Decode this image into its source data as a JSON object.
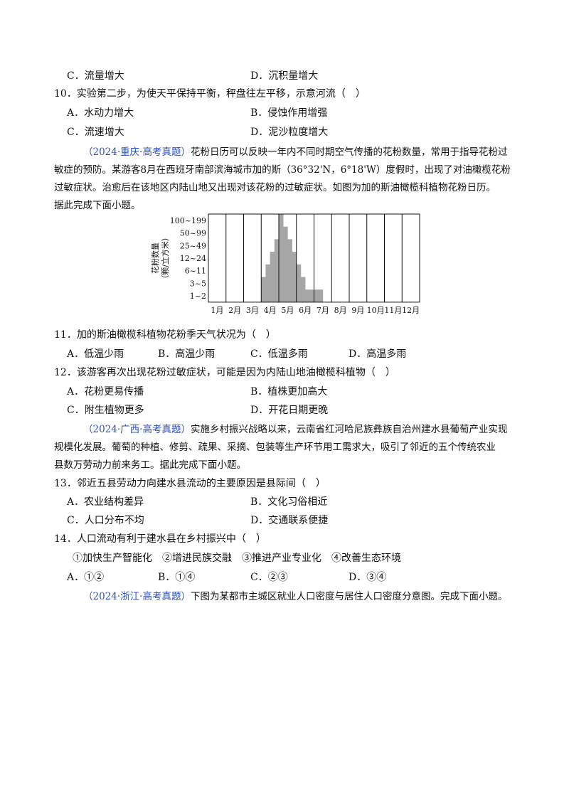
{
  "q9_options": {
    "c": "C．流量增大",
    "d": "D．沉积量增大"
  },
  "q10": {
    "stem": "10．实验第二步，为使天平保持平衡，秤盘往左平移，示意河流（　）",
    "a": "A．水动力增大",
    "b": "B．侵蚀作用增强",
    "c": "C．流速增大",
    "d": "D．泥沙粒度增大"
  },
  "passage1": {
    "source": "（2024·重庆·高考真题）",
    "line1": "花粉日历可以反映一年内不同时期空气传播的花粉数量，常用于指导花粉过",
    "line2": "敏症的预防。某游客8月在西班牙南部滨海城市加的斯（36°32'N，6°18'W）度假时，出现了对油橄榄花粉",
    "line3": "过敏症状。治愈后在该地区内陆山地又出现对该花粉的过敏症状。如图为加的斯油橄榄科植物花粉日历。",
    "line4": "据此完成下面小题。"
  },
  "chart_data": {
    "type": "bar",
    "ylabel": "花粉数量（颗/立方米）",
    "y_categories": [
      "1~2",
      "3~5",
      "6~11",
      "12~24",
      "25~49",
      "50~99",
      "100~199"
    ],
    "categories": [
      "1月",
      "2月",
      "3月",
      "4月",
      "5月",
      "6月",
      "7月",
      "8月",
      "9月",
      "10月",
      "11月",
      "12月"
    ],
    "bins_per_month": 4,
    "levels": [
      0,
      0,
      0,
      0,
      0,
      0,
      0,
      0,
      0,
      0,
      0,
      0,
      2,
      3,
      4,
      5,
      7,
      6,
      5,
      4,
      3,
      2,
      1,
      1,
      1,
      1,
      0,
      0,
      0,
      0,
      0,
      0,
      0,
      0,
      0,
      0,
      0,
      0,
      0,
      0,
      0,
      0,
      0,
      0,
      0,
      0,
      0,
      0
    ],
    "grid": true
  },
  "q11": {
    "stem": "11．加的斯油橄榄科植物花粉季天气状况为（　）",
    "a": "A．低温少雨",
    "b": "B．高温少雨",
    "c": "C．低温多雨",
    "d": "D．高温多雨"
  },
  "q12": {
    "stem": "12．该游客再次出现花粉过敏症状，可能是因为内陆山地油橄榄科植物（　）",
    "a": "A．花粉更易传播",
    "b": "B．植株更加高大",
    "c": "C．附生植物更多",
    "d": "D．开花日期更晚"
  },
  "passage2": {
    "source": "（2024·广西·高考真题）",
    "line1": "实施乡村振兴战略以来，云南省红河哈尼族彝族自治州建水县葡萄产业实现",
    "line2": "规模化发展。葡萄的种植、修剪、疏果、采摘、包装等生产环节用工需求大，吸引了邻近的五个传统农业",
    "line3": "县数万劳动力前来务工。据此完成下面小题。"
  },
  "q13": {
    "stem": "13．邻近五县劳动力向建水县流动的主要原因是县际间（　）",
    "a": "A．农业结构差异",
    "b": "B．文化习俗相近",
    "c": "C．人口分布不均",
    "d": "D．交通联系便捷"
  },
  "q14": {
    "stem": "14．人口流动有利于建水县在乡村振兴中（　）",
    "items": "①加快生产智能化　②增进民族交融　③推进产业专业化　④改善生态环境",
    "a": "A．①②",
    "b": "B．①④",
    "c": "C．②③",
    "d": "D．③④"
  },
  "passage3": {
    "source": "（2024·浙江·高考真题）",
    "line1": "下图为某都市主城区就业人口密度与居住人口密度分意图。完成下面小题。"
  }
}
